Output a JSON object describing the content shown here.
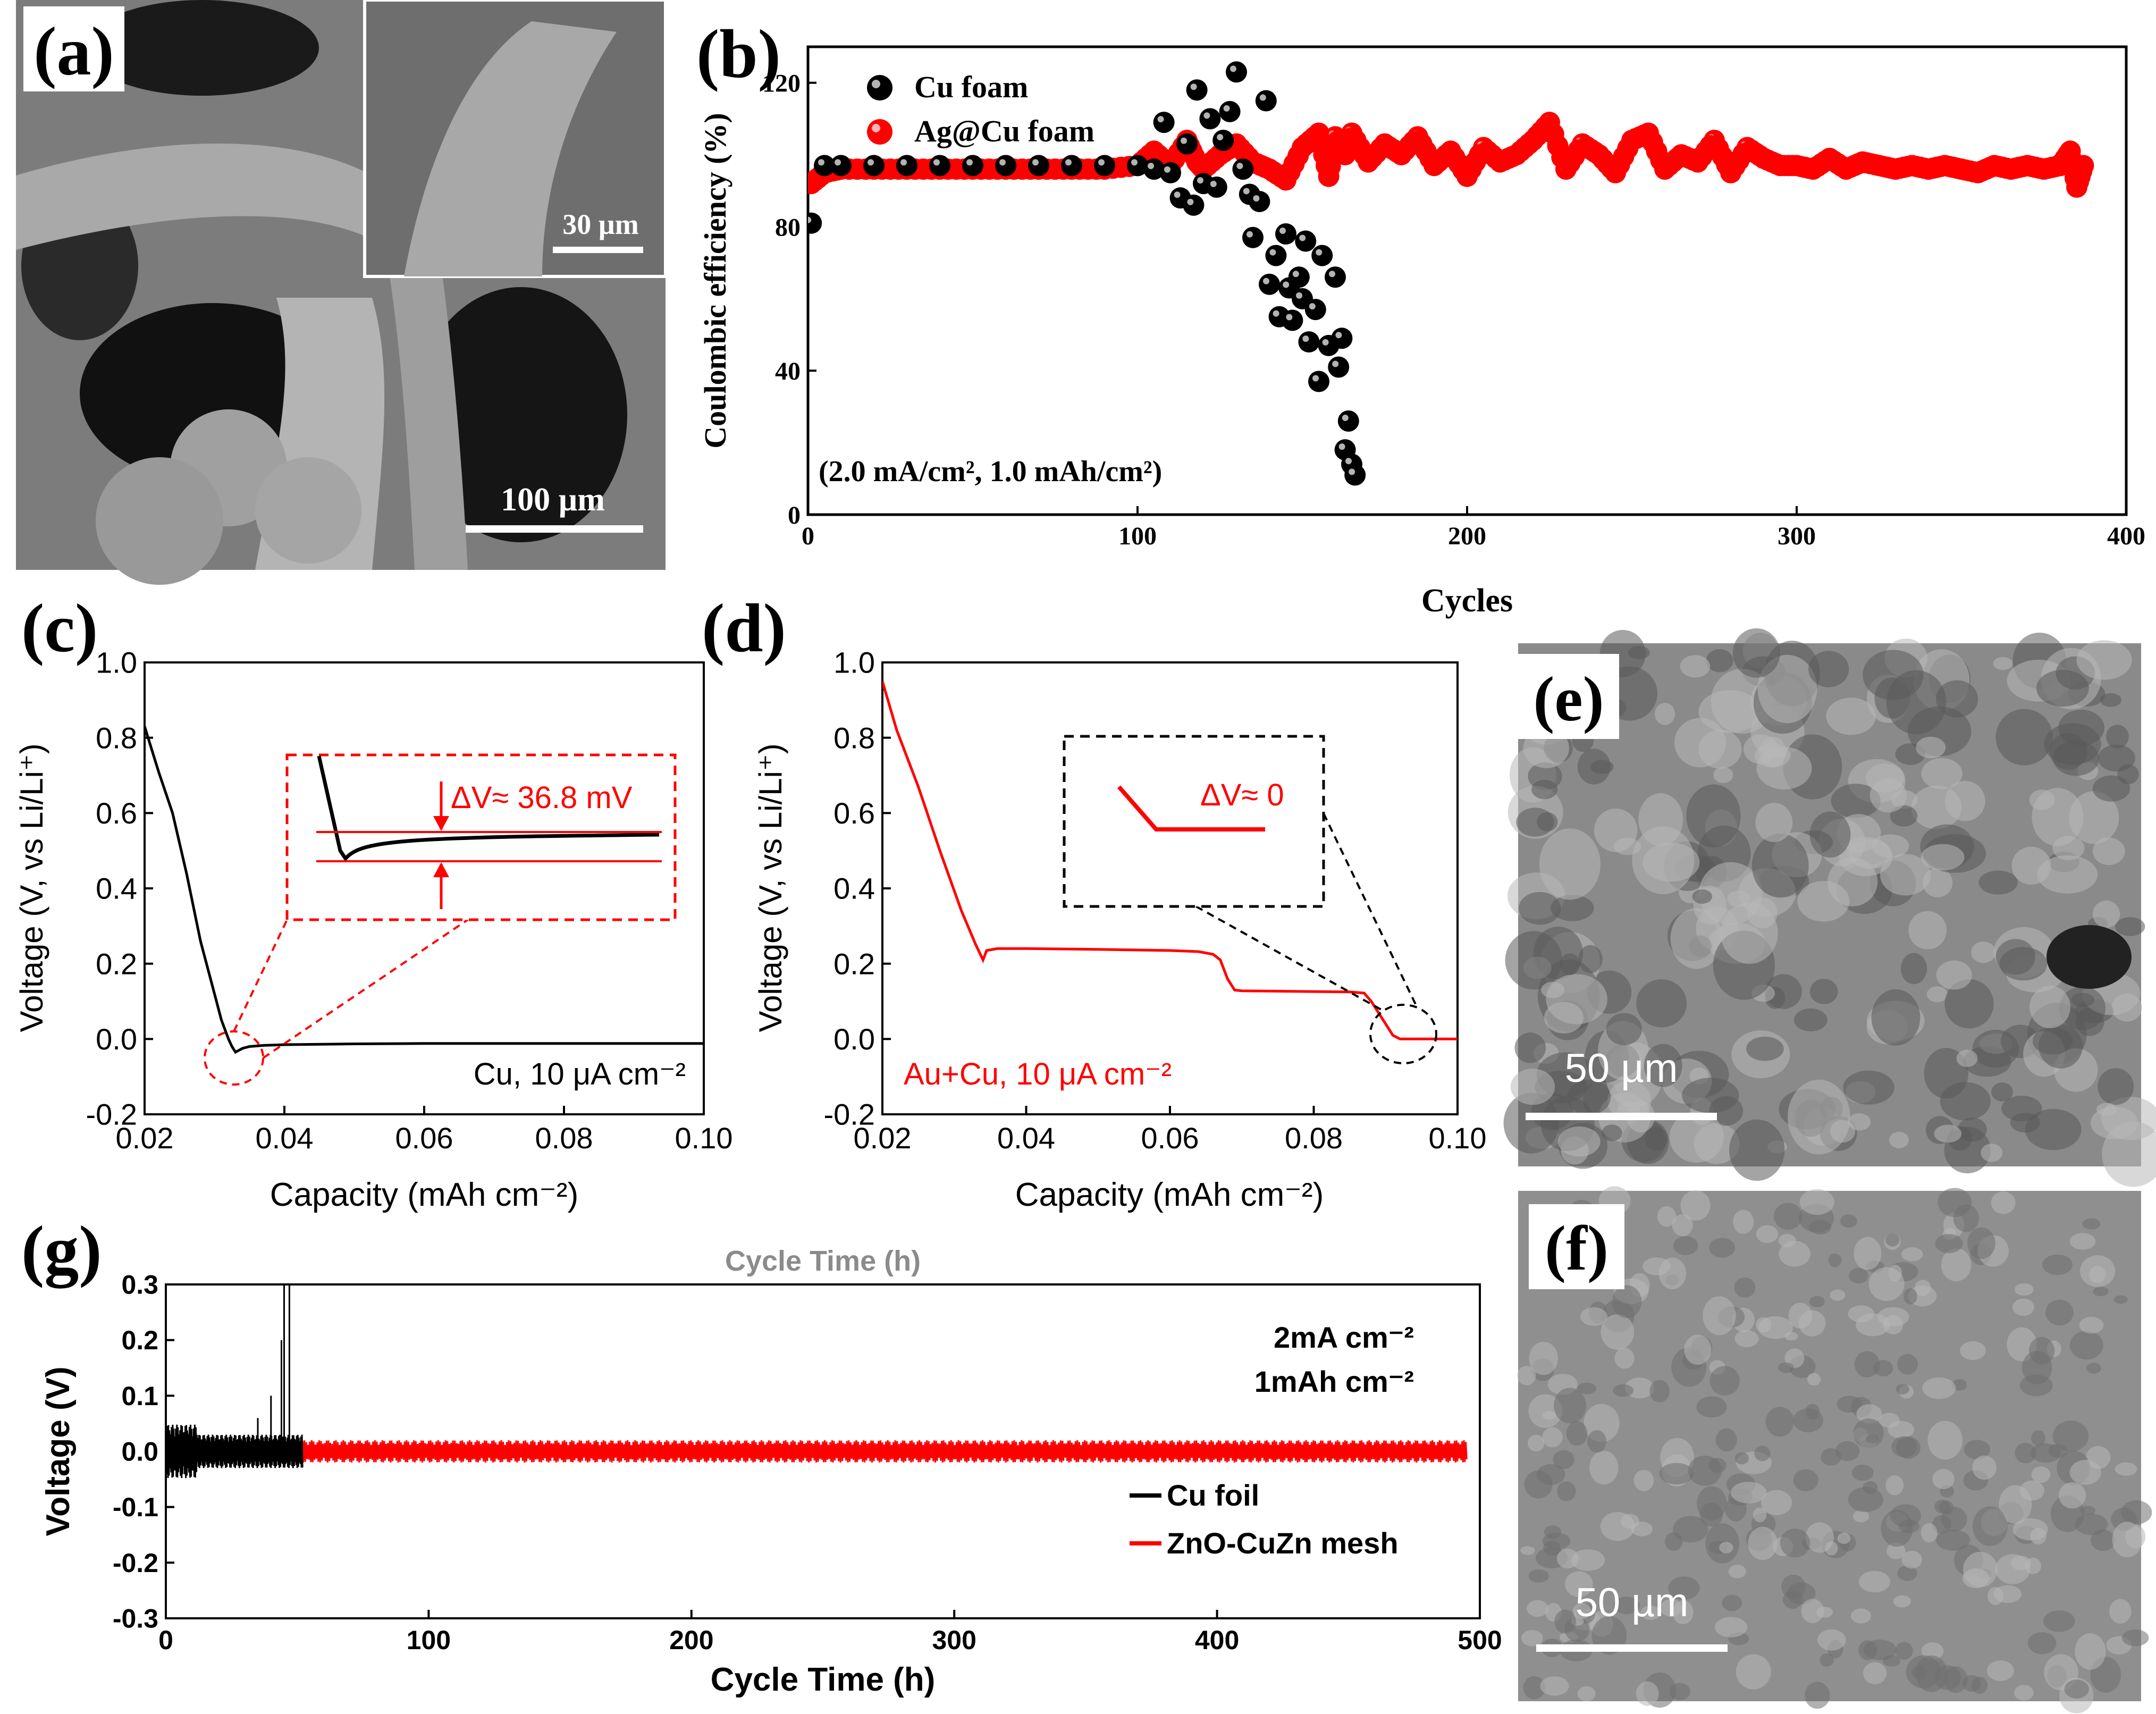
{
  "panels": {
    "a": {
      "label": "(a)",
      "main_scale_bar": "100 µm",
      "inset_scale_bar": "30 µm"
    },
    "e": {
      "label": "(e)",
      "scale_bar": "50 µm"
    },
    "f": {
      "label": "(f)",
      "scale_bar": "50 µm"
    }
  },
  "colors": {
    "black_series": "#000000",
    "red_series": "#ff0000",
    "sem_background": "#8a8a8a"
  },
  "chart_data": [
    {
      "id": "b",
      "panel_label": "(b)",
      "type": "scatter",
      "xlabel": "Cycles",
      "ylabel": "Coulombic efficiency (%)",
      "xlim": [
        0,
        400
      ],
      "ylim": [
        0,
        130
      ],
      "xticks": [
        0,
        100,
        200,
        300,
        400
      ],
      "yticks": [
        0,
        40,
        80,
        120
      ],
      "annotation": "(2.0 mA/cm², 1.0 mAh/cm²)",
      "legend_position": "top-left",
      "series": [
        {
          "name": "Cu foam",
          "color": "#000000",
          "x": [
            1,
            5,
            10,
            20,
            30,
            40,
            50,
            60,
            70,
            80,
            90,
            100,
            105,
            108,
            110,
            113,
            115,
            117,
            118,
            120,
            122,
            124,
            126,
            128,
            130,
            132,
            134,
            135,
            137,
            139,
            140,
            142,
            143,
            145,
            146,
            147,
            149,
            150,
            151,
            152,
            154,
            155,
            156,
            158,
            160,
            161,
            162,
            163,
            164,
            165,
            166
          ],
          "y": [
            81,
            97,
            97,
            97,
            97,
            97,
            97,
            97,
            97,
            97,
            97,
            97,
            96,
            109,
            95,
            88,
            103,
            86,
            118,
            92,
            110,
            91,
            104,
            112,
            123,
            96,
            89,
            77,
            87,
            115,
            64,
            72,
            55,
            78,
            63,
            54,
            66,
            60,
            76,
            48,
            57,
            37,
            72,
            47,
            66,
            41,
            49,
            18,
            26,
            14,
            11
          ]
        },
        {
          "name": "Ag@Cu foam",
          "color": "#ff0000",
          "x": [
            1,
            5,
            10,
            20,
            30,
            40,
            50,
            60,
            70,
            80,
            90,
            100,
            105,
            110,
            115,
            118,
            120,
            125,
            130,
            135,
            140,
            145,
            150,
            155,
            158,
            160,
            163,
            165,
            170,
            175,
            180,
            185,
            190,
            195,
            200,
            205,
            210,
            215,
            220,
            225,
            230,
            235,
            240,
            245,
            250,
            255,
            260,
            265,
            270,
            275,
            280,
            285,
            290,
            295,
            300,
            305,
            310,
            315,
            320,
            325,
            330,
            335,
            340,
            345,
            350,
            355,
            360,
            365,
            370,
            375,
            380,
            383,
            385,
            387
          ],
          "y": [
            92,
            95,
            96,
            96,
            96,
            96,
            96,
            96,
            96,
            96,
            96,
            97,
            101,
            97,
            104,
            98,
            96,
            100,
            103,
            98,
            96,
            93,
            102,
            106,
            94,
            105,
            100,
            106,
            98,
            103,
            100,
            105,
            97,
            101,
            94,
            102,
            98,
            100,
            104,
            109,
            96,
            103,
            100,
            95,
            104,
            106,
            96,
            100,
            98,
            104,
            95,
            102,
            99,
            97,
            97,
            96,
            99,
            96,
            98,
            97,
            96,
            97,
            96,
            97,
            96,
            95,
            97,
            96,
            97,
            96,
            97,
            101,
            91,
            97
          ]
        }
      ]
    },
    {
      "id": "c",
      "panel_label": "(c)",
      "type": "line",
      "xlabel": "Capacity (mAh cm⁻²)",
      "ylabel": "Voltage (V, vs Li/Li⁺)",
      "xlim": [
        0.02,
        0.1
      ],
      "ylim": [
        -0.2,
        1.0
      ],
      "xticks": [
        0.02,
        0.04,
        0.06,
        0.08,
        0.1
      ],
      "xtick_labels": [
        "0.02",
        "0.04",
        "0.06",
        "0.08",
        "0.10"
      ],
      "yticks": [
        -0.2,
        0.0,
        0.2,
        0.4,
        0.6,
        0.8,
        1.0
      ],
      "ytick_labels": [
        "-0.2",
        "0.0",
        "0.2",
        "0.4",
        "0.6",
        "0.8",
        "1.0"
      ],
      "legend_text": "Cu, 10 μA cm⁻²",
      "inset_annotation": "ΔV≈ 36.8 mV",
      "series": [
        {
          "name": "Cu",
          "color": "#000000",
          "x": [
            0.02,
            0.022,
            0.024,
            0.026,
            0.028,
            0.03,
            0.031,
            0.032,
            0.0325,
            0.033,
            0.0335,
            0.034,
            0.035,
            0.037,
            0.04,
            0.05,
            0.06,
            0.07,
            0.08,
            0.09,
            0.1
          ],
          "y": [
            0.83,
            0.71,
            0.6,
            0.44,
            0.26,
            0.12,
            0.05,
            0.0,
            -0.02,
            -0.035,
            -0.03,
            -0.025,
            -0.02,
            -0.017,
            -0.015,
            -0.013,
            -0.012,
            -0.012,
            -0.012,
            -0.012,
            -0.012
          ]
        }
      ]
    },
    {
      "id": "d",
      "panel_label": "(d)",
      "type": "line",
      "xlabel": "Capacity (mAh cm⁻²)",
      "ylabel": "Voltage (V, vs Li/Li⁺)",
      "xlim": [
        0.02,
        0.1
      ],
      "ylim": [
        -0.2,
        1.0
      ],
      "xticks": [
        0.02,
        0.04,
        0.06,
        0.08,
        0.1
      ],
      "xtick_labels": [
        "0.02",
        "0.04",
        "0.06",
        "0.08",
        "0.10"
      ],
      "yticks": [
        -0.2,
        0.0,
        0.2,
        0.4,
        0.6,
        0.8,
        1.0
      ],
      "ytick_labels": [
        "-0.2",
        "0.0",
        "0.2",
        "0.4",
        "0.6",
        "0.8",
        "1.0"
      ],
      "legend_text": "Au+Cu, 10 μA cm⁻²",
      "inset_annotation": "ΔV≈ 0",
      "series": [
        {
          "name": "Au+Cu",
          "color": "#ff0000",
          "x": [
            0.02,
            0.022,
            0.025,
            0.028,
            0.031,
            0.033,
            0.034,
            0.0345,
            0.036,
            0.04,
            0.05,
            0.06,
            0.064,
            0.066,
            0.067,
            0.068,
            0.069,
            0.07,
            0.075,
            0.08,
            0.085,
            0.087,
            0.088,
            0.089,
            0.09,
            0.091,
            0.092,
            0.095,
            0.1
          ],
          "y": [
            0.95,
            0.82,
            0.67,
            0.5,
            0.34,
            0.25,
            0.21,
            0.235,
            0.24,
            0.24,
            0.238,
            0.235,
            0.232,
            0.225,
            0.21,
            0.16,
            0.13,
            0.128,
            0.127,
            0.126,
            0.125,
            0.122,
            0.1,
            0.07,
            0.04,
            0.01,
            0.0,
            0.0,
            0.0
          ]
        }
      ]
    },
    {
      "id": "g",
      "panel_label": "(g)",
      "type": "line",
      "title": "Cycle Time (h)",
      "xlabel": "Cycle Time (h)",
      "ylabel": "Voltage (V)",
      "xlim": [
        0,
        500
      ],
      "ylim": [
        -0.3,
        0.3
      ],
      "xticks": [
        0,
        100,
        200,
        300,
        400,
        500
      ],
      "yticks": [
        -0.3,
        -0.2,
        -0.1,
        0.0,
        0.1,
        0.2,
        0.3
      ],
      "ytick_labels": [
        "-0.3",
        "-0.2",
        "-0.1",
        "0.0",
        "0.1",
        "0.2",
        "0.3"
      ],
      "annotation_lines": [
        "2mA cm⁻²",
        "1mAh cm⁻²"
      ],
      "legend_position": "bottom-right",
      "series": [
        {
          "name": "Cu foil",
          "color": "#000000",
          "x_range": [
            0,
            52
          ],
          "amplitude": 0.03,
          "spikes": [
            {
              "x": 35,
              "y": 0.06
            },
            {
              "x": 40,
              "y": 0.1
            },
            {
              "x": 44,
              "y": 0.2
            },
            {
              "x": 45,
              "y": 0.3
            },
            {
              "x": 47,
              "y": 0.3
            }
          ]
        },
        {
          "name": "ZnO-CuZn mesh",
          "color": "#ff0000",
          "x_range": [
            0,
            495
          ],
          "amplitude": 0.02
        }
      ]
    }
  ]
}
